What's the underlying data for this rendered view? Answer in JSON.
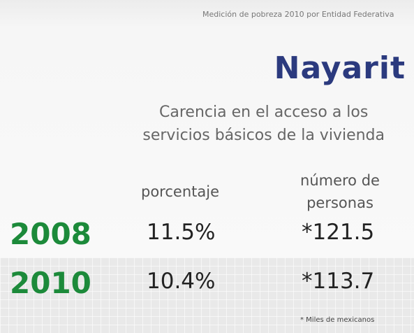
{
  "header": {
    "source": "Medición de pobreza 2010 por Entidad Federativa"
  },
  "title": "Nayarit",
  "subtitle": [
    "Carencia en el acceso a los",
    "servicios básicos de la vivienda"
  ],
  "table": {
    "columns": [
      "porcentaje",
      [
        "número de",
        "personas"
      ]
    ],
    "rows": [
      [
        "2008",
        "11.5%",
        "*121.5"
      ],
      [
        "2010",
        "10.4%",
        "*113.7"
      ]
    ]
  },
  "footnote": "* Miles de mexicanos"
}
